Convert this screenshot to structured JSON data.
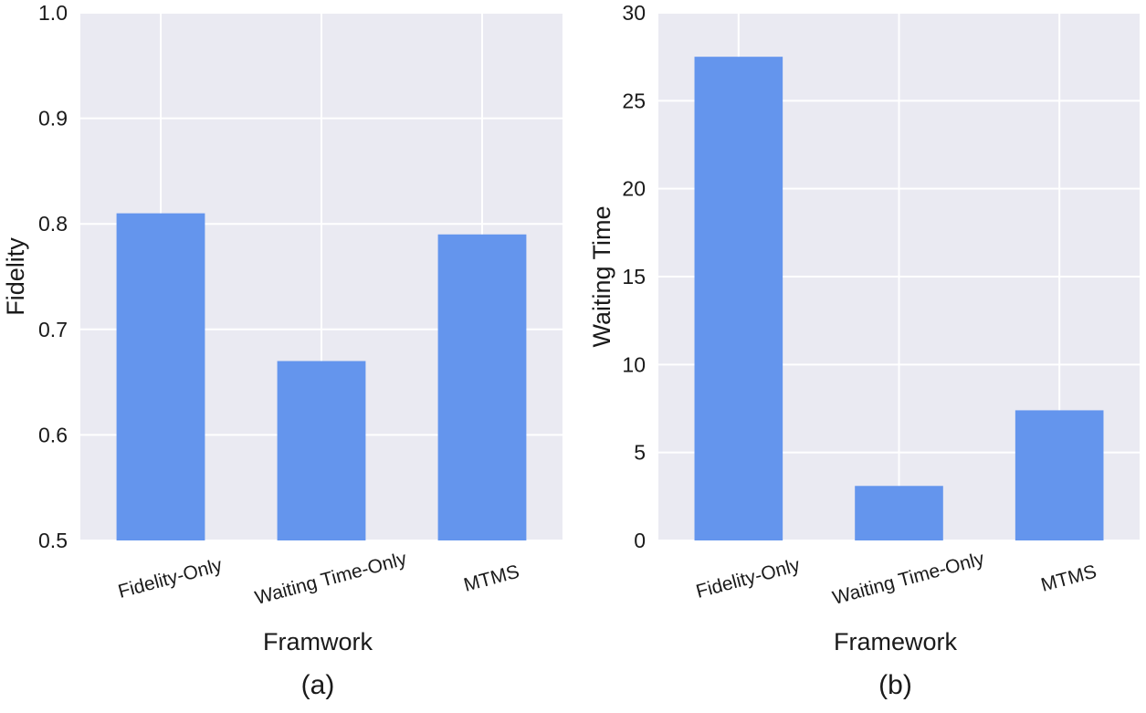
{
  "chart_data": [
    {
      "type": "bar",
      "caption": "(a)",
      "categories": [
        "Fidelity-Only",
        "Waiting Time-Only",
        "MTMS"
      ],
      "values": [
        0.81,
        0.67,
        0.79
      ],
      "xlabel": "Framwork",
      "ylabel": "Fidelity",
      "ylim": [
        0.5,
        1.0
      ],
      "yticks": [
        0.5,
        0.6,
        0.7,
        0.8,
        0.9,
        1.0
      ],
      "ytick_labels": [
        "0.5",
        "0.6",
        "0.7",
        "0.8",
        "0.9",
        "1.0"
      ],
      "grid": true,
      "bar_color": "#6495ED",
      "background_color": "#EAEAF2"
    },
    {
      "type": "bar",
      "caption": "(b)",
      "categories": [
        "Fidelity-Only",
        "Waiting Time-Only",
        "MTMS"
      ],
      "values": [
        27.5,
        3.1,
        7.4
      ],
      "xlabel": "Framework",
      "ylabel": "Waiting Time",
      "ylim": [
        0,
        30
      ],
      "yticks": [
        0,
        5,
        10,
        15,
        20,
        25,
        30
      ],
      "ytick_labels": [
        "0",
        "5",
        "10",
        "15",
        "20",
        "25",
        "30"
      ],
      "grid": true,
      "bar_color": "#6495ED",
      "background_color": "#EAEAF2"
    }
  ]
}
